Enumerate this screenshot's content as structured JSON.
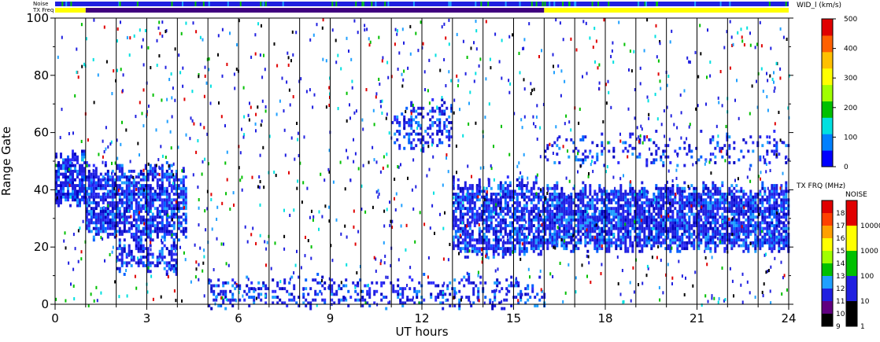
{
  "chart_data": {
    "type": "heatmap",
    "xlabel": "UT hours",
    "ylabel": "Range Gate",
    "xlim": [
      0,
      24
    ],
    "ylim": [
      0,
      100
    ],
    "x_ticks": [
      0,
      3,
      6,
      9,
      12,
      15,
      18,
      21,
      24
    ],
    "y_ticks": [
      0,
      20,
      40,
      60,
      80,
      100
    ],
    "scan_boundaries_ut": [
      1,
      2,
      3,
      4,
      5,
      6,
      7,
      8,
      9,
      10,
      11,
      12,
      13,
      14,
      15,
      16,
      17,
      18,
      19,
      20,
      21,
      22,
      23
    ],
    "echo_bands": [
      {
        "name": "",
        "ut_start": 0.0,
        "ut_end": 1.0,
        "gate_low": 35,
        "gate_high": 52,
        "density": 0.8,
        "dominant_value": "blue"
      },
      {
        "name": "",
        "ut_start": 1.0,
        "ut_end": 4.3,
        "gate_low": 24,
        "gate_high": 47,
        "density": 0.75,
        "dominant_value": "blue"
      },
      {
        "name": "",
        "ut_start": 2.0,
        "ut_end": 4.0,
        "gate_low": 12,
        "gate_high": 20,
        "density": 0.6,
        "dominant_value": "blue"
      },
      {
        "name": "",
        "ut_start": 11.0,
        "ut_end": 13.0,
        "gate_low": 55,
        "gate_high": 70,
        "density": 0.35,
        "dominant_value": "blue"
      },
      {
        "name": "",
        "ut_start": 13.0,
        "ut_end": 16.0,
        "gate_low": 18,
        "gate_high": 42,
        "density": 0.7,
        "dominant_value": "blue"
      },
      {
        "name": "",
        "ut_start": 16.0,
        "ut_end": 24.0,
        "gate_low": 20,
        "gate_high": 40,
        "density": 0.8,
        "dominant_value": "blue"
      },
      {
        "name": "",
        "ut_start": 16.0,
        "ut_end": 24.0,
        "gate_low": 50,
        "gate_high": 58,
        "density": 0.2,
        "dominant_value": "blue"
      },
      {
        "name": "",
        "ut_start": 5.0,
        "ut_end": 16.0,
        "gate_low": 0,
        "gate_high": 8,
        "density": 0.3,
        "dominant_value": "blue"
      }
    ],
    "top_strips": {
      "noise_label": "Noise",
      "txfreq_label": "TX Freq",
      "noise_color": "#2020e0",
      "txfreq_segments": [
        {
          "ut_start": 0,
          "ut_end": 1,
          "color": "#ffff00"
        },
        {
          "ut_start": 1,
          "ut_end": 16,
          "color": "#400080"
        },
        {
          "ut_start": 16,
          "ut_end": 24,
          "color": "#ffff00"
        }
      ]
    },
    "colorbar_width": {
      "title": "WID_l (km/s)",
      "ticks": [
        0,
        100,
        200,
        300,
        400,
        500
      ],
      "colors": [
        "#0000ff",
        "#0080ff",
        "#00e0e0",
        "#00c000",
        "#a0ff00",
        "#ffff00",
        "#ffc000",
        "#ff6000",
        "#e00000"
      ]
    },
    "colorbar_txfreq": {
      "title": "TX FRQ (MHz)",
      "levels": [
        "9",
        "10",
        "11",
        "12",
        "13",
        "14",
        "15",
        "16",
        "17",
        "18"
      ],
      "colors": [
        "#000000",
        "#600080",
        "#2020e0",
        "#20a0ff",
        "#00c000",
        "#a0ff00",
        "#ffff00",
        "#ffa000",
        "#ff4000",
        "#e00000"
      ]
    },
    "colorbar_noise": {
      "title": "NOISE",
      "levels": [
        "1",
        "10",
        "100",
        "1000",
        "10000"
      ],
      "colors": [
        "#000000",
        "#2020e0",
        "#00c000",
        "#ffff00",
        "#e00000"
      ]
    }
  }
}
